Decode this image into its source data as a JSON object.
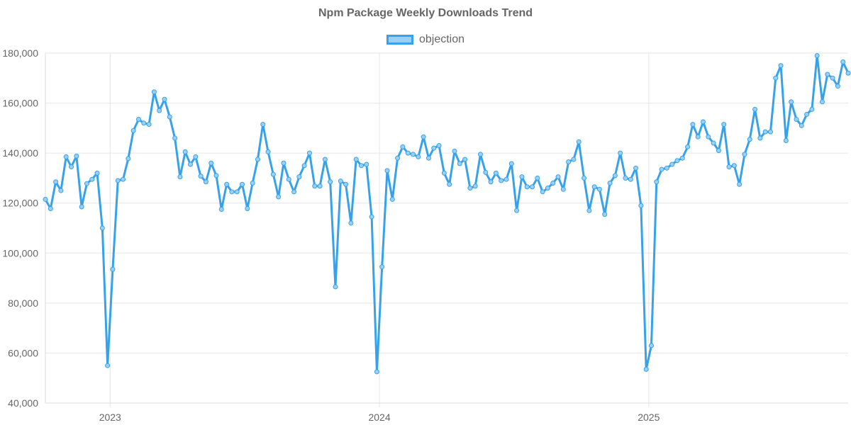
{
  "chart_data": {
    "type": "line",
    "title": "Npm Package Weekly Downloads Trend",
    "xlabel": "",
    "ylabel": "",
    "ylim": [
      40000,
      180000
    ],
    "y_ticks": [
      "40,000",
      "60,000",
      "80,000",
      "100,000",
      "120,000",
      "140,000",
      "160,000",
      "180,000"
    ],
    "y_tick_values": [
      40000,
      60000,
      80000,
      100000,
      120000,
      140000,
      160000,
      180000
    ],
    "x_ticks": [
      {
        "label": "2023",
        "index": 12.5
      },
      {
        "label": "2024",
        "index": 64.5
      },
      {
        "label": "2025",
        "index": 116.5
      }
    ],
    "grid": true,
    "legend_position": "top",
    "colors": {
      "line": "#36a2eb",
      "fill": "#9ad0f5",
      "grid": "#e5e5e5",
      "text": "#666666"
    },
    "series": [
      {
        "name": "objection",
        "values": [
          121500,
          117800,
          128500,
          125000,
          138500,
          134500,
          138800,
          118500,
          127800,
          129500,
          132000,
          110000,
          55000,
          93500,
          129000,
          129500,
          137800,
          149000,
          153500,
          152000,
          151500,
          164500,
          157000,
          161500,
          154500,
          146000,
          130500,
          140500,
          135500,
          138500,
          130800,
          128500,
          136000,
          131000,
          117500,
          127500,
          124500,
          124500,
          127500,
          117800,
          128000,
          137500,
          151500,
          140500,
          131500,
          122500,
          136000,
          129500,
          124500,
          130500,
          135000,
          140000,
          126800,
          126800,
          137500,
          128500,
          86500,
          128800,
          127500,
          112000,
          137500,
          135000,
          135500,
          114500,
          52500,
          94500,
          133000,
          121500,
          138000,
          142500,
          140000,
          139500,
          138500,
          146500,
          138000,
          142000,
          143000,
          132000,
          127500,
          140800,
          135800,
          137500,
          126000,
          126800,
          139500,
          132300,
          128500,
          132000,
          129000,
          129500,
          135800,
          117000,
          130500,
          126500,
          126500,
          130000,
          124500,
          126000,
          128000,
          130500,
          125500,
          136500,
          137500,
          144500,
          130000,
          117000,
          126500,
          125500,
          115500,
          128000,
          131000,
          140000,
          130000,
          129500,
          134000,
          119000,
          53500,
          63000,
          128500,
          133500,
          134000,
          135500,
          137000,
          138000,
          142500,
          151500,
          146500,
          152500,
          146500,
          144000,
          141000,
          151500,
          134500,
          135000,
          127500,
          139500,
          145500,
          157500,
          146000,
          148500,
          148500,
          170000,
          175000,
          145000,
          160500,
          153500,
          151000,
          155500,
          157500,
          179000,
          160500,
          171500,
          170000,
          166800,
          176500,
          172000
        ]
      }
    ]
  }
}
